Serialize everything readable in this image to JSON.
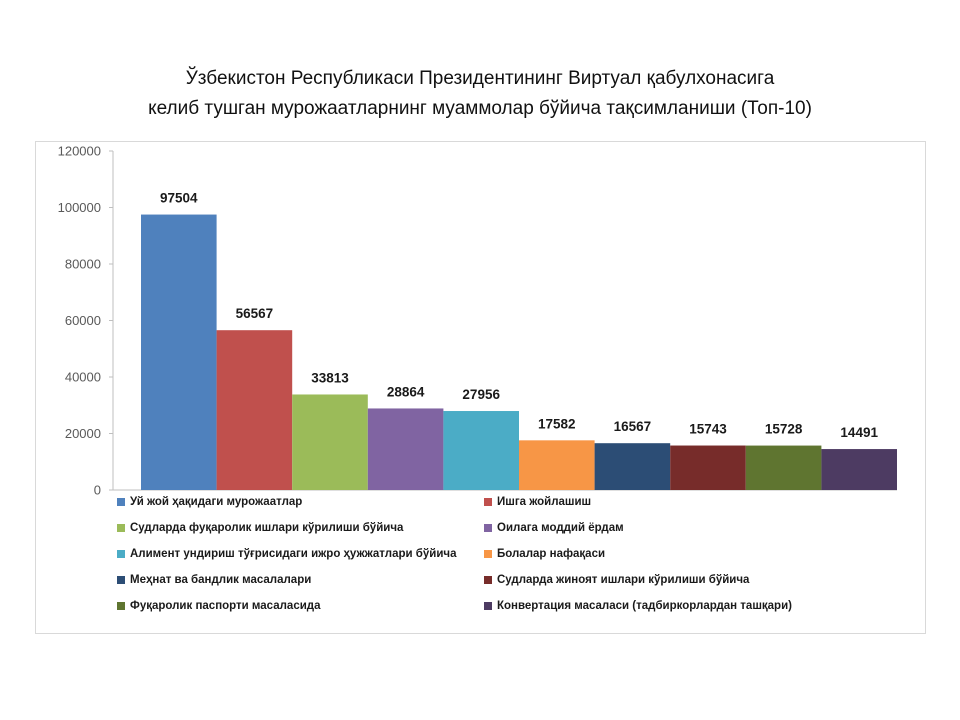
{
  "title_lines": [
    "Ўзбекистон Республикаси Президентининг Виртуал қабулхонасига",
    "келиб тушган мурожаатларнинг муаммолар бўйича тақсимланиши (Топ-10)"
  ],
  "chart_data": {
    "type": "bar",
    "title": "Ўзбекистон Республикаси Президентининг Виртуал қабулхонасига келиб тушган мурожаатларнинг муаммолар бўйича тақсимланиши (Топ-10)",
    "xlabel": "",
    "ylabel": "",
    "ylim": [
      0,
      120000
    ],
    "yticks": [
      0,
      20000,
      40000,
      60000,
      80000,
      100000,
      120000
    ],
    "grid": false,
    "legend_position": "bottom",
    "categories": [
      "Уй жой ҳақидаги мурожаатлар",
      "Ишга жойлашиш",
      "Судларда фуқаролик ишлари кўрилиши бўйича",
      "Оилага моддий ёрдам",
      "Алимент ундириш тўғрисидаги ижро ҳужжатлари бўйича",
      "Болалар нафақаси",
      "Меҳнат ва бандлик масалалари",
      "Судларда жиноят ишлари кўрилиши бўйича",
      "Фуқаролик паспорти масаласида",
      "Конвертация масаласи (тадбиркорлардан ташқари)"
    ],
    "values": [
      97504,
      56567,
      33813,
      28864,
      27956,
      17582,
      16567,
      15743,
      15728,
      14491
    ],
    "colors": [
      "#4f81bd",
      "#c0504d",
      "#9bbb59",
      "#8064a2",
      "#4bacc6",
      "#f79646",
      "#2c4d75",
      "#772c2a",
      "#5f7530",
      "#4d3b62"
    ]
  }
}
